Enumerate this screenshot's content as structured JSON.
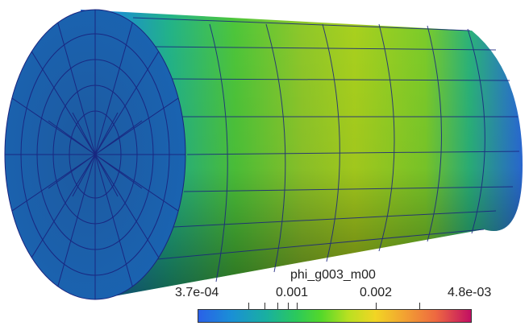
{
  "scalar_bar": {
    "title": "phi_g003_m00",
    "labels": {
      "min": "3.7e-04",
      "mid1": "0.001",
      "mid2": "0.002",
      "max": "4.8e-03"
    }
  },
  "colors": {
    "low": "#2a61e8",
    "mid": "#54d82a",
    "high": "#c20f63",
    "mesh_edge": "#1a237e"
  }
}
